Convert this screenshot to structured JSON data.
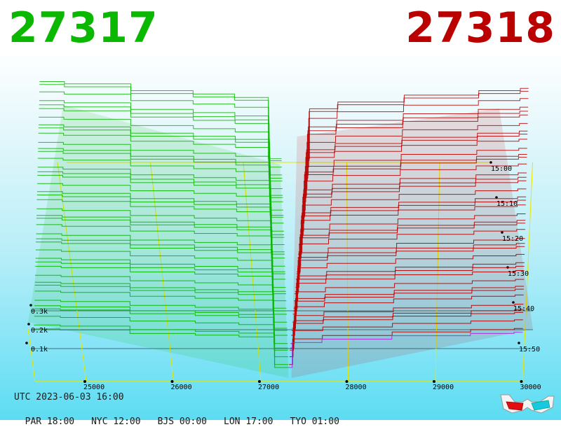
{
  "prices": {
    "bid": "27317",
    "ask": "27318",
    "bid_color": "#0ab800",
    "ask_color": "#bb0000"
  },
  "footer": {
    "utc": "UTC 2023-06-03 16:00",
    "zones": [
      "PAR 18:00",
      "NYC 12:00",
      "BJS 00:00",
      "LON 17:00",
      "TYO 01:00"
    ]
  },
  "icons": {
    "anaglyph": "3d-glasses-icon"
  },
  "chart_data": {
    "type": "area",
    "projection": "3d-depth-over-time",
    "x_ticks": [
      "25000",
      "26000",
      "27000",
      "28000",
      "29000",
      "30000"
    ],
    "x_values": [
      25000,
      26000,
      27000,
      28000,
      29000,
      30000
    ],
    "xlim": [
      24400,
      30000
    ],
    "depth_ticks": [
      "0.1k",
      "0.2k",
      "0.3k"
    ],
    "depth_values": [
      100,
      200,
      300
    ],
    "time_ticks": [
      "15:00",
      "15:10",
      "15:20",
      "15:30",
      "15:40",
      "15:50"
    ],
    "mid_price": 27317.5,
    "series": [
      {
        "side": "bid",
        "color": "#0ab800",
        "x": [
          24400,
          25000,
          26000,
          26500,
          27000,
          27317
        ],
        "y": [
          340,
          330,
          300,
          285,
          270,
          0
        ]
      },
      {
        "side": "ask",
        "color": "#bb0000",
        "x": [
          27318,
          27400,
          28000,
          29000,
          29800,
          30000
        ],
        "y": [
          0,
          220,
          250,
          280,
          300,
          310
        ]
      }
    ]
  }
}
